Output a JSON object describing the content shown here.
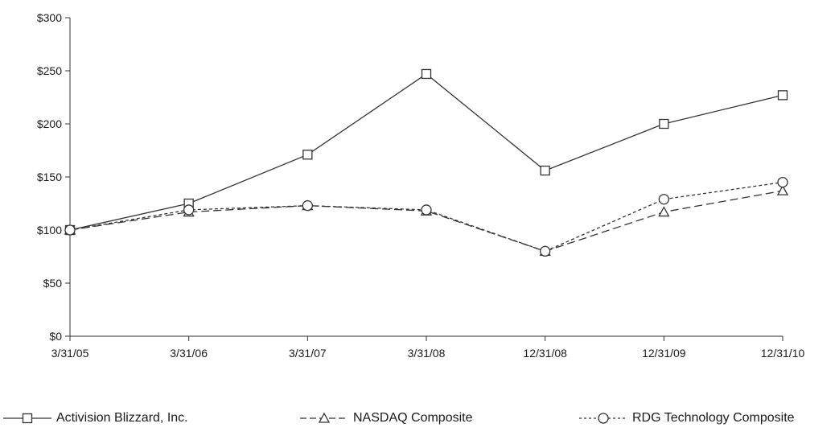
{
  "chart_data": {
    "type": "line",
    "title": "",
    "xlabel": "",
    "ylabel": "",
    "x": [
      "3/31/05",
      "3/31/06",
      "3/31/07",
      "3/31/08",
      "12/31/08",
      "12/31/09",
      "12/31/10"
    ],
    "ylim": [
      0,
      300
    ],
    "yticks": [
      0,
      50,
      100,
      150,
      200,
      250,
      300
    ],
    "ytick_labels": [
      "$0",
      "$50",
      "$100",
      "$150",
      "$200",
      "$250",
      "$300"
    ],
    "grid": false,
    "legend_position": "bottom",
    "series": [
      {
        "name": "Activision Blizzard, Inc.",
        "marker": "square",
        "line_style": "solid",
        "values": [
          100,
          125,
          171,
          247,
          156,
          200,
          227
        ]
      },
      {
        "name": "NASDAQ Composite",
        "marker": "triangle",
        "line_style": "dashed",
        "values": [
          100,
          117,
          123,
          118,
          80,
          117,
          137
        ]
      },
      {
        "name": "RDG Technology Composite",
        "marker": "circle",
        "line_style": "dotted",
        "values": [
          100,
          119,
          123,
          119,
          80,
          129,
          145
        ]
      }
    ],
    "line_color": "#333333"
  }
}
